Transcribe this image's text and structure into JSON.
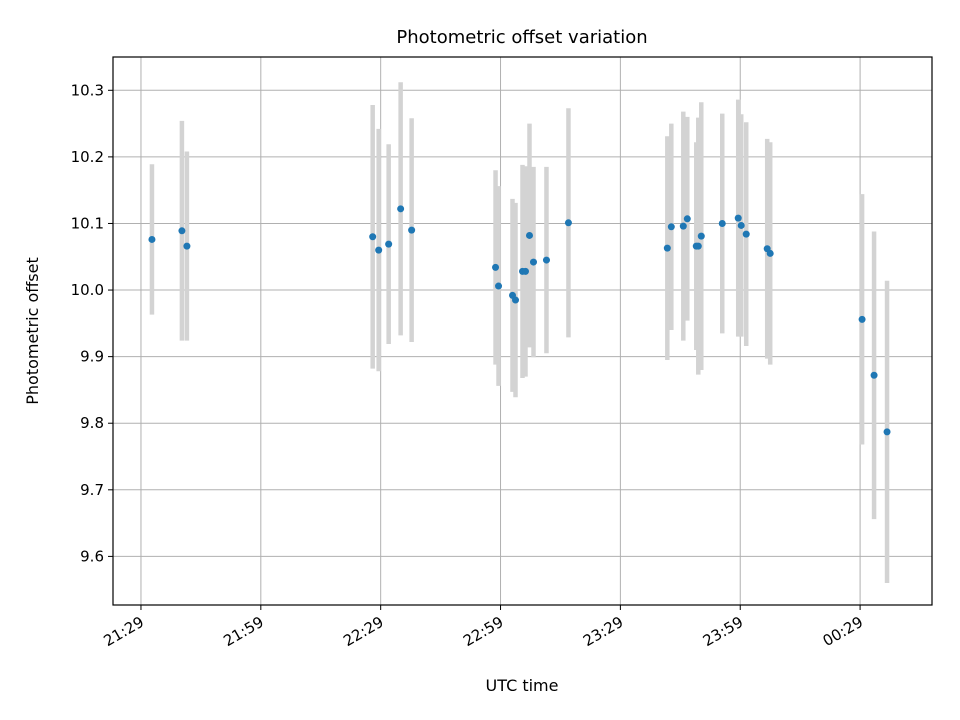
{
  "chart_data": {
    "type": "scatter",
    "title": "Photometric offset variation",
    "xlabel": "UTC time",
    "ylabel": "Photometric offset",
    "x_axis_type": "time",
    "xlim": [
      "21:22",
      "00:47"
    ],
    "ylim": [
      9.527,
      10.35
    ],
    "x_ticks": [
      "21:29",
      "21:59",
      "22:29",
      "22:59",
      "23:29",
      "23:59",
      "00:29"
    ],
    "y_ticks": [
      9.6,
      9.7,
      9.8,
      9.9,
      10.0,
      10.1,
      10.2,
      10.3
    ],
    "y_tick_labels": [
      "9.6",
      "9.7",
      "9.8",
      "9.9",
      "10.0",
      "10.1",
      "10.2",
      "10.3"
    ],
    "grid": true,
    "marker_color": "#1f77b4",
    "errorbar_color": "#d3d3d3",
    "points": [
      {
        "x": "21:31:45",
        "y": 10.076,
        "yerr": 0.113
      },
      {
        "x": "21:39:15",
        "y": 10.089,
        "yerr": 0.165
      },
      {
        "x": "21:40:30",
        "y": 10.066,
        "yerr": 0.142
      },
      {
        "x": "22:27:00",
        "y": 10.08,
        "yerr": 0.198
      },
      {
        "x": "22:28:30",
        "y": 10.06,
        "yerr": 0.182
      },
      {
        "x": "22:31:00",
        "y": 10.069,
        "yerr": 0.15
      },
      {
        "x": "22:34:00",
        "y": 10.122,
        "yerr": 0.19
      },
      {
        "x": "22:36:45",
        "y": 10.09,
        "yerr": 0.168
      },
      {
        "x": "22:57:45",
        "y": 10.034,
        "yerr": 0.146
      },
      {
        "x": "22:58:30",
        "y": 10.006,
        "yerr": 0.15
      },
      {
        "x": "23:02:00",
        "y": 9.992,
        "yerr": 0.145
      },
      {
        "x": "23:02:45",
        "y": 9.985,
        "yerr": 0.146
      },
      {
        "x": "23:04:30",
        "y": 10.028,
        "yerr": 0.16
      },
      {
        "x": "23:05:15",
        "y": 10.028,
        "yerr": 0.158
      },
      {
        "x": "23:06:15",
        "y": 10.082,
        "yerr": 0.168
      },
      {
        "x": "23:07:15",
        "y": 10.042,
        "yerr": 0.143
      },
      {
        "x": "23:10:30",
        "y": 10.045,
        "yerr": 0.14
      },
      {
        "x": "23:16:00",
        "y": 10.101,
        "yerr": 0.172
      },
      {
        "x": "23:40:45",
        "y": 10.063,
        "yerr": 0.168
      },
      {
        "x": "23:41:45",
        "y": 10.095,
        "yerr": 0.155
      },
      {
        "x": "23:44:45",
        "y": 10.096,
        "yerr": 0.172
      },
      {
        "x": "23:45:45",
        "y": 10.107,
        "yerr": 0.153
      },
      {
        "x": "23:48:00",
        "y": 10.066,
        "yerr": 0.156
      },
      {
        "x": "23:48:30",
        "y": 10.066,
        "yerr": 0.193
      },
      {
        "x": "23:49:15",
        "y": 10.081,
        "yerr": 0.201
      },
      {
        "x": "23:54:30",
        "y": 10.1,
        "yerr": 0.165
      },
      {
        "x": "23:58:30",
        "y": 10.108,
        "yerr": 0.178
      },
      {
        "x": "23:59:15",
        "y": 10.097,
        "yerr": 0.167
      },
      {
        "x": "24:00:30",
        "y": 10.084,
        "yerr": 0.168
      },
      {
        "x": "24:05:45",
        "y": 10.062,
        "yerr": 0.165
      },
      {
        "x": "24:06:30",
        "y": 10.055,
        "yerr": 0.167
      },
      {
        "x": "24:29:30",
        "y": 9.956,
        "yerr": 0.188
      },
      {
        "x": "24:32:30",
        "y": 9.872,
        "yerr": 0.216
      },
      {
        "x": "24:35:45",
        "y": 9.787,
        "yerr": 0.227
      }
    ]
  }
}
